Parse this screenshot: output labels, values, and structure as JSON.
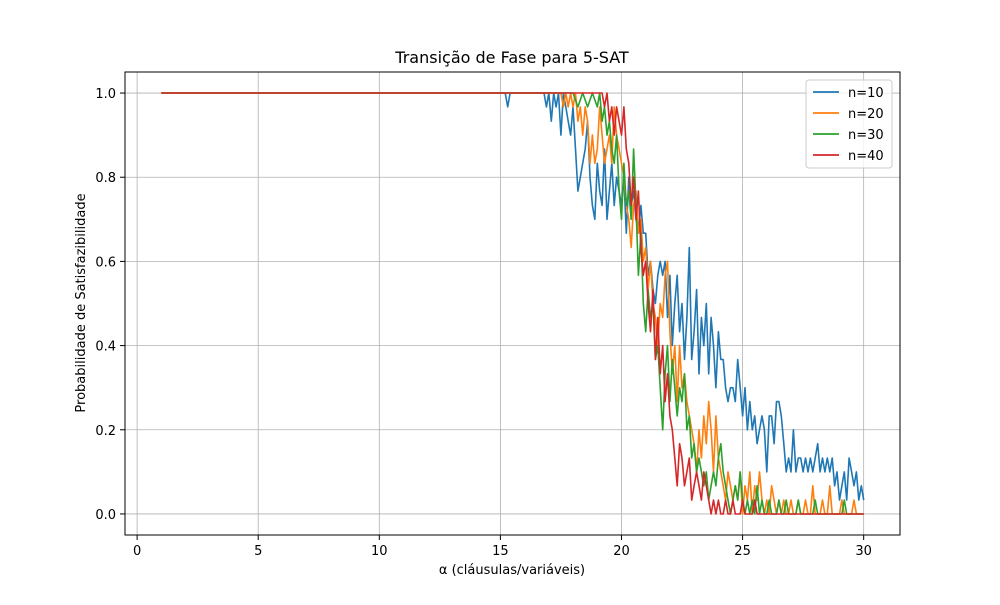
{
  "chart_data": {
    "type": "line",
    "title": "Transição de Fase para 5-SAT",
    "xlabel": "α (cláusulas/variáveis)",
    "ylabel": "Probabilidade de Satisfazibilidade",
    "xlim": [
      -0.5,
      31.5
    ],
    "ylim": [
      -0.05,
      1.05
    ],
    "xticks": [
      0,
      5,
      10,
      15,
      20,
      25,
      30
    ],
    "yticks": [
      0.0,
      0.2,
      0.4,
      0.6,
      0.8,
      1.0
    ],
    "xtick_labels": [
      "0",
      "5",
      "10",
      "15",
      "20",
      "25",
      "30"
    ],
    "ytick_labels": [
      "0.0",
      "0.2",
      "0.4",
      "0.6",
      "0.8",
      "1.0"
    ],
    "grid": true,
    "legend_position": "top-right",
    "series": [
      {
        "name": "n=10",
        "color": "#1f77b4",
        "x": [
          1,
          15.2,
          15.3,
          15.4,
          16.8,
          16.9,
          17.0,
          17.1,
          17.2,
          17.3,
          17.4,
          17.5,
          17.6,
          17.7,
          17.8,
          17.9,
          18.0,
          18.1,
          18.2,
          18.3,
          18.4,
          18.5,
          18.6,
          18.7,
          18.8,
          18.9,
          19.0,
          19.1,
          19.2,
          19.3,
          19.4,
          19.5,
          19.6,
          19.7,
          19.8,
          19.9,
          20.0,
          20.1,
          20.2,
          20.3,
          20.4,
          20.5,
          20.6,
          20.7,
          20.8,
          20.9,
          21.0,
          21.1,
          21.2,
          21.3,
          21.4,
          21.5,
          21.6,
          21.7,
          21.8,
          21.9,
          22.0,
          22.1,
          22.2,
          22.3,
          22.4,
          22.5,
          22.6,
          22.7,
          22.8,
          22.9,
          23.0,
          23.1,
          23.2,
          23.3,
          23.4,
          23.5,
          23.6,
          23.7,
          23.8,
          23.9,
          24.0,
          24.1,
          24.2,
          24.3,
          24.4,
          24.5,
          24.6,
          24.7,
          24.8,
          24.9,
          25.0,
          25.1,
          25.2,
          25.3,
          25.4,
          25.5,
          25.6,
          25.7,
          25.8,
          25.9,
          26.0,
          26.1,
          26.2,
          26.3,
          26.4,
          26.5,
          26.6,
          26.7,
          26.8,
          26.9,
          27.0,
          27.1,
          27.2,
          27.3,
          27.4,
          27.5,
          27.6,
          27.7,
          27.8,
          27.9,
          28.0,
          28.1,
          28.2,
          28.3,
          28.4,
          28.5,
          28.6,
          28.7,
          28.8,
          28.9,
          29.0,
          29.1,
          29.2,
          29.3,
          29.4,
          29.5,
          29.6,
          29.7,
          29.8,
          29.9,
          30.0
        ],
        "y": [
          1.0,
          1.0,
          0.967,
          1.0,
          1.0,
          0.967,
          1.0,
          0.933,
          1.0,
          0.967,
          1.0,
          0.9,
          1.0,
          0.967,
          0.933,
          0.9,
          0.967,
          0.867,
          0.767,
          0.8,
          0.833,
          0.867,
          0.933,
          0.8,
          0.733,
          0.7,
          0.833,
          0.767,
          0.733,
          0.867,
          0.7,
          0.767,
          0.833,
          0.733,
          0.8,
          0.767,
          0.733,
          0.8,
          0.667,
          0.8,
          0.733,
          0.767,
          0.7,
          0.667,
          0.733,
          0.667,
          0.667,
          0.567,
          0.6,
          0.533,
          0.5,
          0.567,
          0.6,
          0.567,
          0.6,
          0.467,
          0.567,
          0.4,
          0.5,
          0.567,
          0.433,
          0.5,
          0.367,
          0.467,
          0.633,
          0.367,
          0.433,
          0.533,
          0.333,
          0.467,
          0.4,
          0.5,
          0.333,
          0.467,
          0.4,
          0.3,
          0.433,
          0.367,
          0.367,
          0.3,
          0.267,
          0.3,
          0.3,
          0.267,
          0.367,
          0.3,
          0.233,
          0.3,
          0.2,
          0.267,
          0.2,
          0.233,
          0.167,
          0.2,
          0.233,
          0.2,
          0.1,
          0.233,
          0.233,
          0.167,
          0.267,
          0.267,
          0.233,
          0.167,
          0.1,
          0.133,
          0.1,
          0.2,
          0.1,
          0.133,
          0.133,
          0.1,
          0.133,
          0.1,
          0.133,
          0.1,
          0.133,
          0.167,
          0.1,
          0.133,
          0.1,
          0.133,
          0.1,
          0.133,
          0.067,
          0.1,
          0.033,
          0.067,
          0.1,
          0.033,
          0.133,
          0.1,
          0.067,
          0.1,
          0.033,
          0.067,
          0.033
        ]
      },
      {
        "name": "n=20",
        "color": "#ff7f0e",
        "x": [
          1,
          17.5,
          17.6,
          17.7,
          17.8,
          17.9,
          18.0,
          18.1,
          18.2,
          18.3,
          18.4,
          18.5,
          18.6,
          18.7,
          18.8,
          18.9,
          19.0,
          19.1,
          19.2,
          19.3,
          19.4,
          19.5,
          19.6,
          19.7,
          19.8,
          19.9,
          20.0,
          20.1,
          20.2,
          20.3,
          20.4,
          20.5,
          20.6,
          20.7,
          20.8,
          20.9,
          21.0,
          21.1,
          21.2,
          21.3,
          21.4,
          21.5,
          21.6,
          21.7,
          21.8,
          21.9,
          22.0,
          22.1,
          22.2,
          22.3,
          22.4,
          22.5,
          22.6,
          22.7,
          22.8,
          22.9,
          23.0,
          23.1,
          23.2,
          23.3,
          23.4,
          23.5,
          23.6,
          23.7,
          23.8,
          23.9,
          24.0,
          24.1,
          24.2,
          24.3,
          24.4,
          24.5,
          24.6,
          24.7,
          24.8,
          24.9,
          25.0,
          25.1,
          25.2,
          25.3,
          25.4,
          25.5,
          25.6,
          25.7,
          25.8,
          25.9,
          26.0,
          26.1,
          26.2,
          26.3,
          26.4,
          26.5,
          26.6,
          26.7,
          26.8,
          26.9,
          27.0,
          27.1,
          27.2,
          27.3,
          27.4,
          27.5,
          27.6,
          27.7,
          27.8,
          27.9,
          28.0,
          28.1,
          28.2,
          28.3,
          28.4,
          28.5,
          28.6,
          28.7,
          28.8,
          28.9,
          29.0,
          29.1,
          29.2,
          29.3,
          29.4,
          29.5,
          29.6,
          29.7,
          29.8,
          29.9,
          30.0
        ],
        "y": [
          1.0,
          1.0,
          0.967,
          1.0,
          0.967,
          1.0,
          0.967,
          1.0,
          0.933,
          0.967,
          0.9,
          0.967,
          0.933,
          0.833,
          0.9,
          0.833,
          0.867,
          0.967,
          0.9,
          0.833,
          0.867,
          0.9,
          0.833,
          0.967,
          0.9,
          0.867,
          0.833,
          0.8,
          0.733,
          0.7,
          0.633,
          0.733,
          0.767,
          0.667,
          0.7,
          0.6,
          0.633,
          0.533,
          0.6,
          0.5,
          0.467,
          0.4,
          0.5,
          0.467,
          0.567,
          0.6,
          0.433,
          0.333,
          0.4,
          0.267,
          0.4,
          0.3,
          0.333,
          0.267,
          0.233,
          0.2,
          0.167,
          0.1,
          0.2,
          0.133,
          0.233,
          0.167,
          0.267,
          0.2,
          0.1,
          0.233,
          0.133,
          0.1,
          0.067,
          0.033,
          0.1,
          0.067,
          0.033,
          0.067,
          0.033,
          0.1,
          0.0,
          0.067,
          0.033,
          0.1,
          0.0,
          0.067,
          0.033,
          0.1,
          0.033,
          0.0,
          0.033,
          0.0,
          0.067,
          0.033,
          0.0,
          0.033,
          0.0,
          0.033,
          0.0,
          0.0,
          0.033,
          0.0,
          0.0,
          0.033,
          0.0,
          0.0,
          0.033,
          0.0,
          0.0,
          0.067,
          0.0,
          0.0,
          0.0,
          0.033,
          0.0,
          0.0,
          0.067,
          0.0,
          0.0,
          0.0,
          0.0,
          0.033,
          0.0,
          0.0,
          0.0,
          0.0,
          0.033,
          0.0,
          0.0,
          0.0,
          0.0
        ]
      },
      {
        "name": "n=30",
        "color": "#2ca02c",
        "x": [
          1,
          18.0,
          18.2,
          18.4,
          18.6,
          18.8,
          19.0,
          19.1,
          19.2,
          19.3,
          19.4,
          19.5,
          19.6,
          19.7,
          19.8,
          19.9,
          20.0,
          20.1,
          20.2,
          20.3,
          20.4,
          20.5,
          20.6,
          20.7,
          20.8,
          20.9,
          21.0,
          21.1,
          21.2,
          21.3,
          21.4,
          21.5,
          21.6,
          21.7,
          21.8,
          21.9,
          22.0,
          22.1,
          22.2,
          22.3,
          22.4,
          22.5,
          22.6,
          22.7,
          22.8,
          22.9,
          23.0,
          23.1,
          23.2,
          23.3,
          23.4,
          23.5,
          23.6,
          23.7,
          23.8,
          23.9,
          24.0,
          24.1,
          24.2,
          24.3,
          24.4,
          24.5,
          24.6,
          24.7,
          24.8,
          24.9,
          25.0,
          25.1,
          25.2,
          25.3,
          25.4,
          25.5,
          25.6,
          25.7,
          25.8,
          25.9,
          26.0,
          26.1,
          26.2,
          26.3,
          26.4,
          26.5,
          26.6,
          26.7,
          26.8,
          26.9,
          27.0,
          27.1,
          27.2,
          27.3,
          27.4,
          27.5,
          27.6,
          27.7,
          27.8,
          27.9,
          28.0,
          28.1,
          28.2,
          28.3,
          28.4,
          28.5,
          28.6,
          28.7,
          28.8,
          28.9,
          29.0,
          29.1,
          29.2,
          29.3,
          29.4,
          29.5,
          29.6,
          29.7,
          29.8,
          29.9,
          30.0
        ],
        "y": [
          1.0,
          1.0,
          0.967,
          1.0,
          0.967,
          1.0,
          0.967,
          1.0,
          0.933,
          0.967,
          0.9,
          0.933,
          0.867,
          0.833,
          0.9,
          0.767,
          0.7,
          0.833,
          0.733,
          0.767,
          0.7,
          0.867,
          0.733,
          0.567,
          0.667,
          0.5,
          0.433,
          0.533,
          0.467,
          0.5,
          0.367,
          0.4,
          0.3,
          0.2,
          0.333,
          0.4,
          0.267,
          0.367,
          0.3,
          0.233,
          0.3,
          0.267,
          0.333,
          0.2,
          0.233,
          0.133,
          0.167,
          0.1,
          0.133,
          0.1,
          0.067,
          0.1,
          0.033,
          0.067,
          0.1,
          0.067,
          0.133,
          0.167,
          0.1,
          0.067,
          0.033,
          0.0,
          0.033,
          0.067,
          0.033,
          0.1,
          0.033,
          0.0,
          0.033,
          0.0,
          0.033,
          0.0,
          0.067,
          0.0,
          0.033,
          0.0,
          0.0,
          0.033,
          0.0,
          0.0,
          0.0,
          0.033,
          0.0,
          0.0,
          0.033,
          0.0,
          0.0,
          0.0,
          0.0,
          0.033,
          0.0,
          0.0,
          0.0,
          0.0,
          0.0,
          0.0,
          0.033,
          0.0,
          0.0,
          0.0,
          0.0,
          0.0,
          0.0,
          0.0,
          0.0,
          0.0,
          0.0,
          0.0,
          0.033,
          0.0,
          0.0,
          0.0,
          0.0,
          0.0,
          0.0,
          0.0,
          0.0
        ]
      },
      {
        "name": "n=40",
        "color": "#d62728",
        "x": [
          1,
          19.2,
          19.3,
          19.4,
          19.5,
          19.6,
          19.7,
          19.8,
          19.9,
          20.0,
          20.1,
          20.2,
          20.3,
          20.4,
          20.5,
          20.6,
          20.7,
          20.8,
          20.9,
          21.0,
          21.1,
          21.2,
          21.3,
          21.4,
          21.5,
          21.6,
          21.7,
          21.8,
          21.9,
          22.0,
          22.1,
          22.2,
          22.3,
          22.4,
          22.5,
          22.6,
          22.7,
          22.8,
          22.9,
          23.0,
          23.1,
          23.2,
          23.3,
          23.4,
          23.5,
          23.6,
          23.7,
          23.8,
          23.9,
          24.0,
          24.1,
          24.2,
          24.3,
          24.4,
          24.5,
          24.6,
          24.7,
          24.8,
          24.9,
          25.0,
          25.1,
          25.2,
          25.3,
          25.4,
          25.5,
          25.6,
          25.7,
          25.8,
          25.9,
          26.0,
          26.5,
          27.0,
          27.5,
          28.0,
          28.5,
          29.0,
          29.5,
          30.0
        ],
        "y": [
          1.0,
          1.0,
          0.967,
          1.0,
          0.933,
          0.967,
          0.9,
          0.967,
          0.933,
          0.9,
          0.967,
          0.867,
          0.833,
          0.733,
          0.8,
          0.7,
          0.767,
          0.633,
          0.567,
          0.6,
          0.5,
          0.433,
          0.533,
          0.367,
          0.467,
          0.333,
          0.4,
          0.267,
          0.333,
          0.233,
          0.2,
          0.133,
          0.067,
          0.167,
          0.133,
          0.067,
          0.1,
          0.133,
          0.033,
          0.067,
          0.1,
          0.067,
          0.033,
          0.1,
          0.067,
          0.033,
          0.0,
          0.033,
          0.0,
          0.033,
          0.0,
          0.0,
          0.033,
          0.0,
          0.0,
          0.033,
          0.0,
          0.0,
          0.0,
          0.033,
          0.0,
          0.0,
          0.0,
          0.0,
          0.033,
          0.0,
          0.0,
          0.0,
          0.0,
          0.0,
          0.0,
          0.0,
          0.0,
          0.0,
          0.0,
          0.0,
          0.0,
          0.0
        ]
      }
    ]
  }
}
